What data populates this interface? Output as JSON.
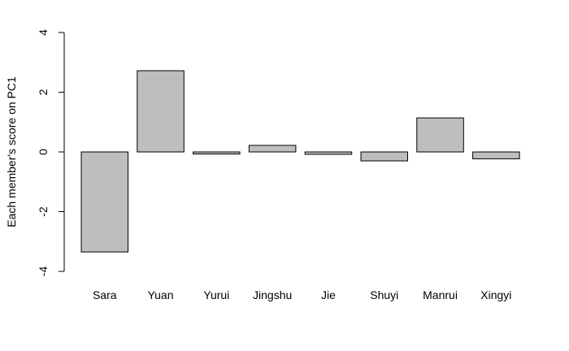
{
  "chart_data": {
    "type": "bar",
    "title": "",
    "xlabel": "",
    "ylabel": "Each member's score on PC1",
    "ylim": [
      -4,
      4
    ],
    "y_ticks": [
      -4,
      -2,
      0,
      2,
      4
    ],
    "categories": [
      "Sara",
      "Yuan",
      "Yurui",
      "Jingshu",
      "Jie",
      "Shuyi",
      "Manrui",
      "Xingyi"
    ],
    "values": [
      -3.35,
      2.72,
      -0.07,
      0.22,
      -0.08,
      -0.3,
      1.14,
      -0.23
    ],
    "bar_color": "#bebebe",
    "border_color": "#000000",
    "grid": false
  }
}
